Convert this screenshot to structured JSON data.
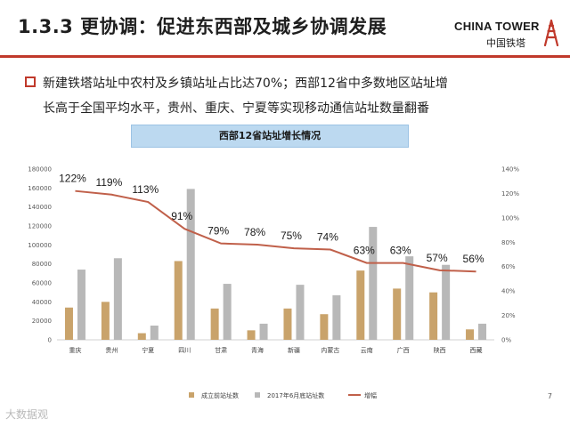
{
  "header": {
    "title": "1.3.3 更协调：促进东西部及城乡协调发展",
    "logo_en": "CHINA TOWER",
    "logo_cn": "中国铁塔",
    "accent": "#c0392b"
  },
  "bullet": {
    "line1": "新建铁塔站址中农村及乡镇站址占比达70%；西部12省中多数地区站址增",
    "line2": "长高于全国平均水平，贵州、重庆、宁夏等实现移动通信站址数量翻番"
  },
  "chart_title": "西部12省站址增长情况",
  "chart_data": {
    "type": "bar",
    "categories": [
      "重庆",
      "贵州",
      "宁夏",
      "四川",
      "甘肃",
      "青海",
      "新疆",
      "内蒙古",
      "云南",
      "广西",
      "陕西",
      "西藏"
    ],
    "series": [
      {
        "name": "成立前站址数",
        "type": "bar",
        "axis": "left",
        "color": "#c9a36b",
        "values": [
          34000,
          40000,
          7000,
          83000,
          33000,
          10000,
          33000,
          27000,
          73000,
          54000,
          50000,
          11000
        ]
      },
      {
        "name": "2017年6月底站址数",
        "type": "bar",
        "axis": "left",
        "color": "#b8b8b8",
        "values": [
          74000,
          86000,
          15000,
          159000,
          59000,
          17000,
          58000,
          47000,
          119000,
          88000,
          79000,
          17000
        ]
      },
      {
        "name": "增幅",
        "type": "line",
        "axis": "right",
        "color": "#c0604a",
        "values": [
          122,
          119,
          113,
          91,
          79,
          78,
          75,
          74,
          63,
          63,
          57,
          56
        ],
        "labels": [
          "122%",
          "119%",
          "113%",
          "91%",
          "79%",
          "78%",
          "75%",
          "74%",
          "63%",
          "63%",
          "57%",
          "56%"
        ]
      }
    ],
    "y_left": {
      "min": 0,
      "max": 180000,
      "ticks": [
        "0",
        "20000",
        "40000",
        "60000",
        "80000",
        "100000",
        "120000",
        "140000",
        "160000",
        "180000"
      ]
    },
    "y_right": {
      "min": 0,
      "max": 140,
      "ticks": [
        "0%",
        "20%",
        "40%",
        "60%",
        "80%",
        "100%",
        "120%",
        "140%"
      ]
    },
    "grid": false,
    "legend_position": "bottom"
  },
  "footer": {
    "page_number": "7",
    "watermark": "大数据观"
  }
}
